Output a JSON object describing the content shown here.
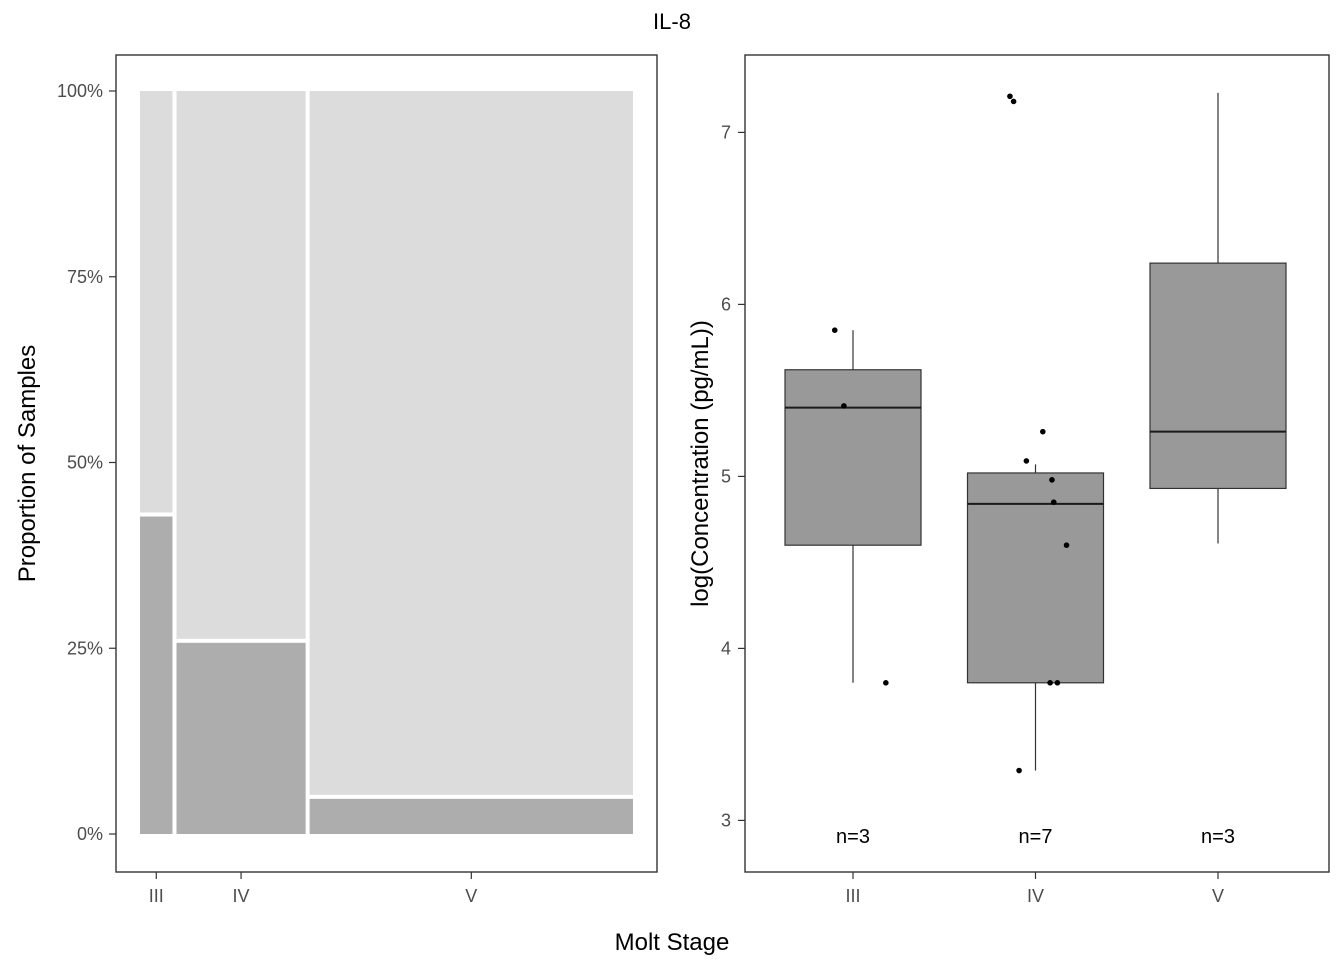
{
  "title": "IL-8",
  "shared_xlabel": "Molt Stage",
  "colors": {
    "upper_segment": "#dcdcdc",
    "lower_segment": "#adadad",
    "box_fill": "#999999",
    "point": "#000000"
  },
  "chart_data": [
    {
      "type": "mosaic",
      "ylabel": "Proportion of Samples",
      "categories": [
        "III",
        "IV",
        "V"
      ],
      "widths": [
        0.07,
        0.27,
        0.66
      ],
      "lower_proportion": [
        0.43,
        0.26,
        0.05
      ],
      "ylim": [
        0,
        1
      ],
      "yticks": [
        0,
        0.25,
        0.5,
        0.75,
        1.0
      ],
      "ytick_labels": [
        "0%",
        "25%",
        "50%",
        "75%",
        "100%"
      ],
      "grid": false
    },
    {
      "type": "box",
      "ylabel": "log(Concentration (pg/mL))",
      "categories": [
        "III",
        "IV",
        "V"
      ],
      "ylim": [
        2.7,
        7.45
      ],
      "yticks": [
        3,
        4,
        5,
        6,
        7
      ],
      "ytick_labels": [
        "3",
        "4",
        "5",
        "6",
        "7"
      ],
      "grid": false,
      "boxes": [
        {
          "category": "III",
          "whisker_low": 3.8,
          "q1": 4.6,
          "median": 5.4,
          "q3": 5.62,
          "whisker_high": 5.85,
          "n_label": "n=3"
        },
        {
          "category": "IV",
          "whisker_low": 3.29,
          "q1": 3.8,
          "median": 4.84,
          "q3": 5.02,
          "whisker_high": 5.07,
          "n_label": "n=7"
        },
        {
          "category": "V",
          "whisker_low": 4.61,
          "q1": 4.93,
          "median": 5.26,
          "q3": 6.24,
          "whisker_high": 7.23,
          "n_label": "n=3"
        }
      ],
      "points": [
        {
          "x": 0.9,
          "y": 5.85
        },
        {
          "x": 0.95,
          "y": 5.41
        },
        {
          "x": 1.18,
          "y": 3.8
        },
        {
          "x": 1.88,
          "y": 7.18
        },
        {
          "x": 1.91,
          "y": 3.29
        },
        {
          "x": 1.95,
          "y": 5.09
        },
        {
          "x": 2.09,
          "y": 4.98
        },
        {
          "x": 2.1,
          "y": 4.85
        },
        {
          "x": 2.08,
          "y": 3.8
        },
        {
          "x": 2.12,
          "y": 3.8
        },
        {
          "x": 1.86,
          "y": 7.21
        },
        {
          "x": 2.04,
          "y": 5.26
        },
        {
          "x": 2.17,
          "y": 4.6
        }
      ]
    }
  ]
}
